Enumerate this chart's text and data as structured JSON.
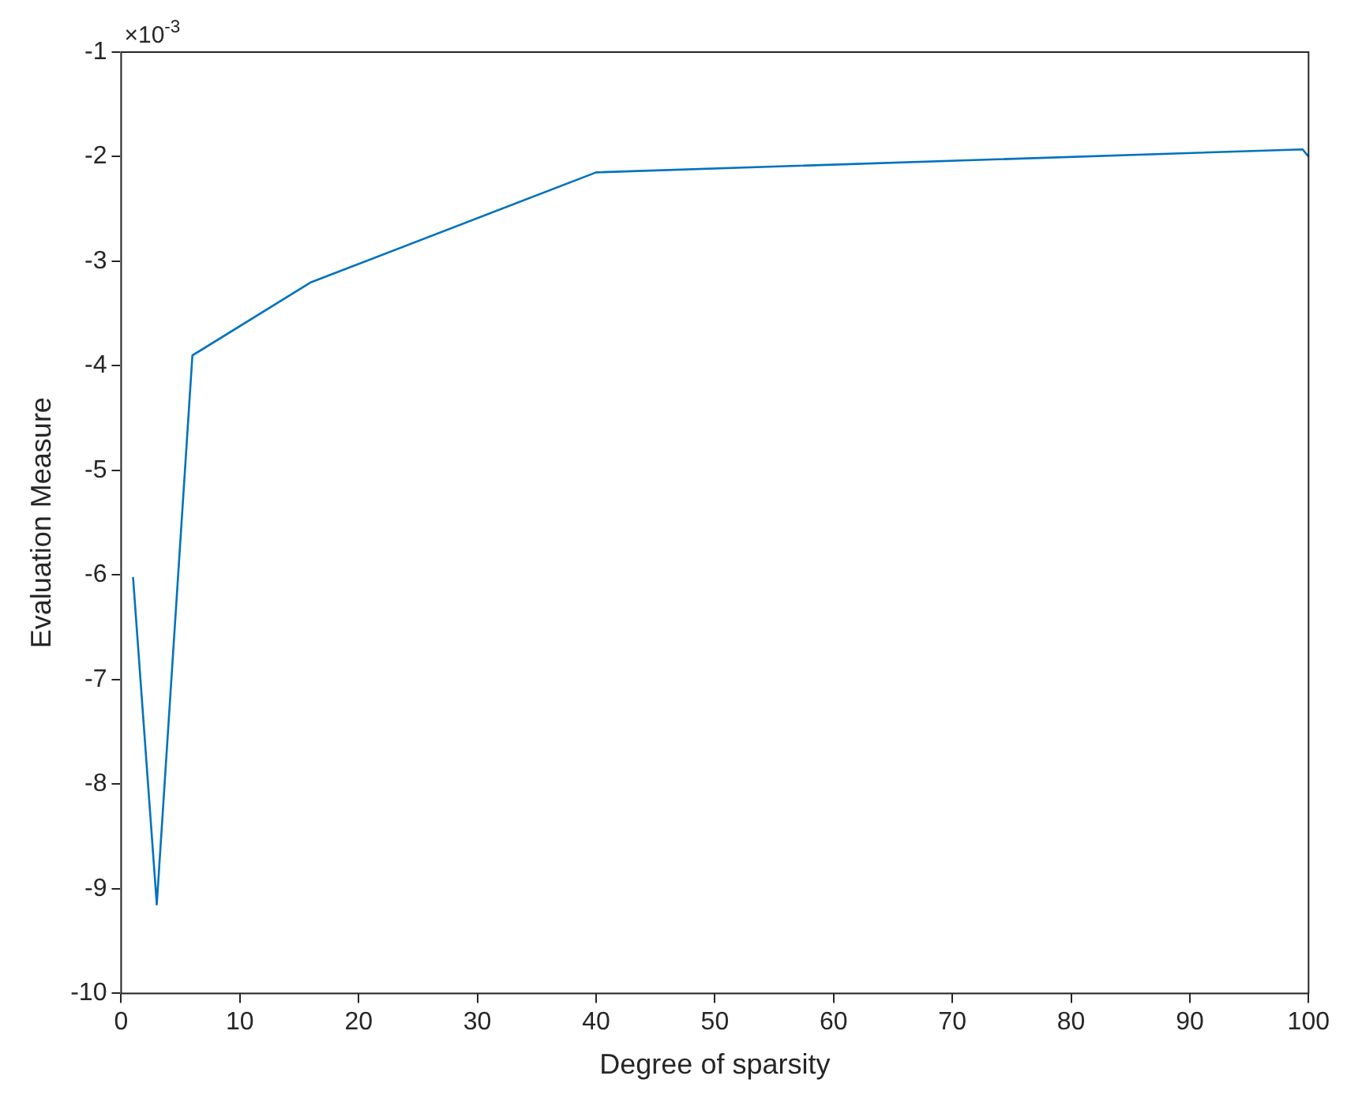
{
  "chart_data": {
    "type": "line",
    "xlabel": "Degree of sparsity",
    "ylabel": "Evaluation Measure",
    "annotations": [
      "×10$^{-3}$"
    ],
    "x": [
      1,
      3,
      6,
      16,
      40,
      99.5,
      100
    ],
    "series": [
      {
        "color": "#0072bd",
        "values": [
          -6.02,
          -9.15,
          -3.9,
          -3.2,
          -2.15,
          -1.93,
          -2.0
        ]
      }
    ],
    "xlim": [
      0,
      100
    ],
    "xticks": [
      0,
      10,
      20,
      30,
      40,
      50,
      60,
      70,
      80,
      90,
      100
    ],
    "ylim": [
      -10,
      -1
    ],
    "yticks": [
      -10,
      -9,
      -8,
      -7,
      -6,
      -5,
      -4,
      -3,
      -2,
      -1
    ],
    "grid": false,
    "legend": false,
    "marker": "none",
    "line_style": "solid"
  }
}
